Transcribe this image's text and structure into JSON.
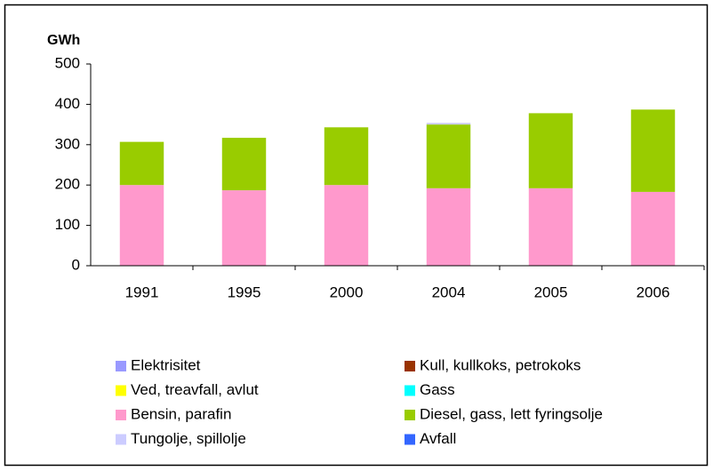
{
  "chart_data": {
    "type": "stacked_bar",
    "y_label": "GWh",
    "categories": [
      "1991",
      "1995",
      "2000",
      "2004",
      "2005",
      "2006"
    ],
    "series": [
      {
        "name": "Elektrisitet",
        "color": "#9999ff",
        "values": [
          0,
          0,
          0,
          0,
          0,
          0
        ]
      },
      {
        "name": "Kull, kullkoks, petrokoks",
        "color": "#993300",
        "values": [
          0,
          0,
          0,
          0,
          0,
          0
        ]
      },
      {
        "name": "Ved, treavfall, avlut",
        "color": "#ffff00",
        "values": [
          0,
          0,
          0,
          0,
          0,
          0
        ]
      },
      {
        "name": "Gass",
        "color": "#00ffff",
        "values": [
          0,
          0,
          0,
          0,
          0,
          0
        ]
      },
      {
        "name": "Bensin, parafin",
        "color": "#ff99cc",
        "values": [
          200,
          187,
          200,
          192,
          192,
          183
        ]
      },
      {
        "name": "Diesel, gass, lett fyringsolje",
        "color": "#99cc00",
        "values": [
          107,
          130,
          143,
          158,
          186,
          204
        ]
      },
      {
        "name": "Tungolje, spillolje",
        "color": "#ccccff",
        "values": [
          0,
          0,
          0,
          4,
          0,
          0
        ]
      },
      {
        "name": "Avfall",
        "color": "#3366ff",
        "values": [
          0,
          0,
          0,
          0,
          0,
          0
        ]
      }
    ],
    "ylim": [
      0,
      500
    ],
    "yticks": [
      0,
      100,
      200,
      300,
      400,
      500
    ],
    "grid": false,
    "legend": "bottom"
  }
}
